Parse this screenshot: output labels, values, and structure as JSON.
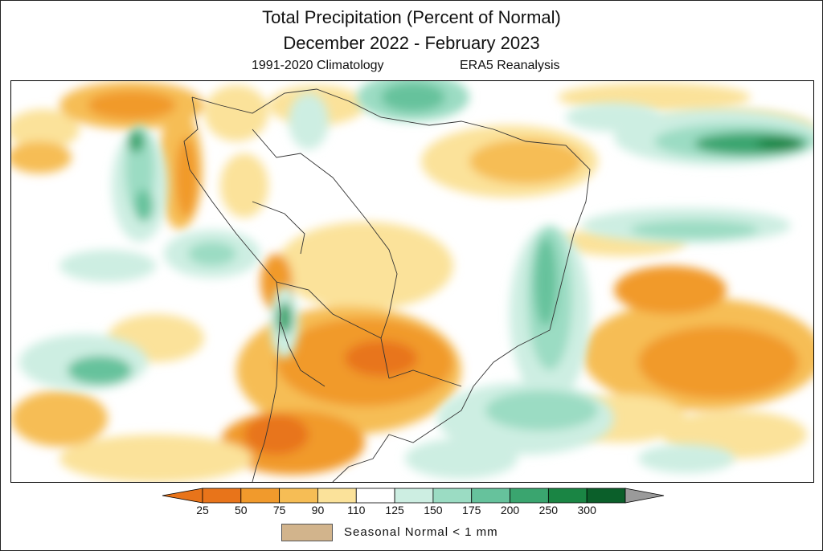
{
  "header": {
    "title_line1": "Total Precipitation (Percent of Normal)",
    "title_line2": "December 2022 - February 2023",
    "subtitle_left": "1991-2020 Climatology",
    "subtitle_right": "ERA5 Reanalysis"
  },
  "colorbar": {
    "ticks": [
      "25",
      "50",
      "75",
      "90",
      "110",
      "125",
      "150",
      "175",
      "200",
      "250",
      "300"
    ],
    "colors": [
      "#e8741a",
      "#f19a2c",
      "#f6bd55",
      "#fbe29a",
      "#ffffff",
      "#cdeee2",
      "#9bdcc3",
      "#66c29c",
      "#3aa56f",
      "#1a8544",
      "#0b5f2a"
    ],
    "low_arrow_color": "#e8741a",
    "high_arrow_color": "#9a9a9a"
  },
  "legend": {
    "seasonal_label": "Seasonal  Normal  <  1  mm",
    "seasonal_color": "#d2b48c"
  }
}
